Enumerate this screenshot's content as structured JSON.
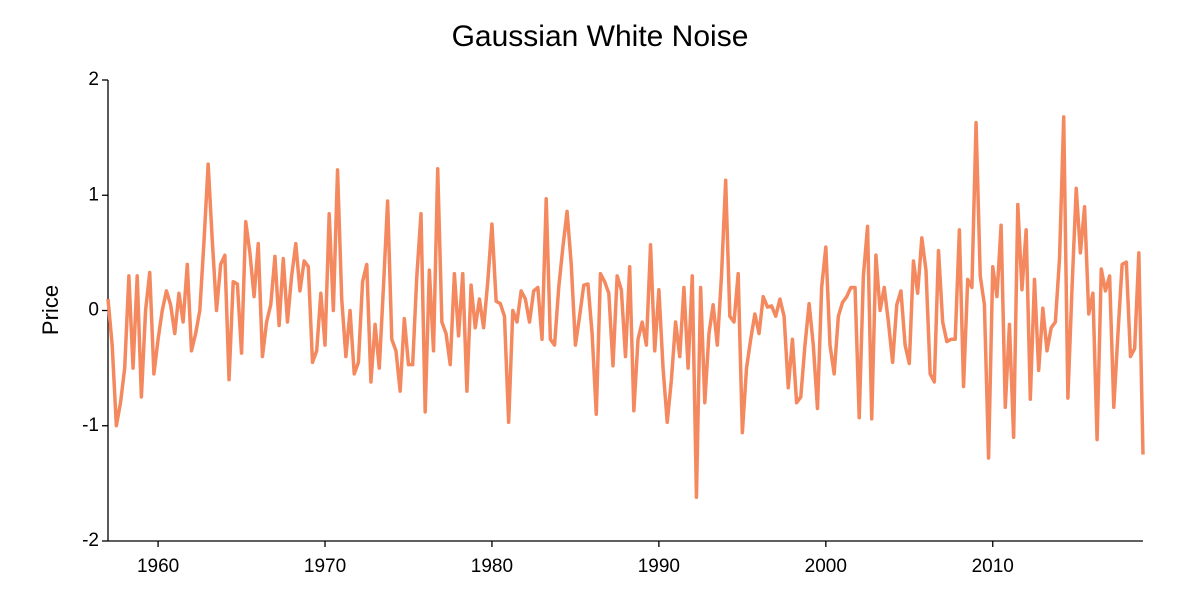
{
  "chart_data": {
    "type": "line",
    "title": "Gaussian White Noise",
    "y_label": "Price",
    "x": [
      1957,
      1957.25,
      1957.5,
      1957.75,
      1958,
      1958.25,
      1958.5,
      1958.75,
      1959,
      1959.25,
      1959.5,
      1959.75,
      1960,
      1960.25,
      1960.5,
      1960.75,
      1961,
      1961.25,
      1961.5,
      1961.75,
      1962,
      1962.25,
      1962.5,
      1962.75,
      1963,
      1963.25,
      1963.5,
      1963.75,
      1964,
      1964.25,
      1964.5,
      1964.75,
      1965,
      1965.25,
      1965.5,
      1965.75,
      1966,
      1966.25,
      1966.5,
      1966.75,
      1967,
      1967.25,
      1967.5,
      1967.75,
      1968,
      1968.25,
      1968.5,
      1968.75,
      1969,
      1969.25,
      1969.5,
      1969.75,
      1970,
      1970.25,
      1970.5,
      1970.75,
      1971,
      1971.25,
      1971.5,
      1971.75,
      1972,
      1972.25,
      1972.5,
      1972.75,
      1973,
      1973.25,
      1973.5,
      1973.75,
      1974,
      1974.25,
      1974.5,
      1974.75,
      1975,
      1975.25,
      1975.5,
      1975.75,
      1976,
      1976.25,
      1976.5,
      1976.75,
      1977,
      1977.25,
      1977.5,
      1977.75,
      1978,
      1978.25,
      1978.5,
      1978.75,
      1979,
      1979.25,
      1979.5,
      1979.75,
      1980,
      1980.25,
      1980.5,
      1980.75,
      1981,
      1981.25,
      1981.5,
      1981.75,
      1982,
      1982.25,
      1982.5,
      1982.75,
      1983,
      1983.25,
      1983.5,
      1983.75,
      1984,
      1984.25,
      1984.5,
      1984.75,
      1985,
      1985.25,
      1985.5,
      1985.75,
      1986,
      1986.25,
      1986.5,
      1986.75,
      1987,
      1987.25,
      1987.5,
      1987.75,
      1988,
      1988.25,
      1988.5,
      1988.75,
      1989,
      1989.25,
      1989.5,
      1989.75,
      1990,
      1990.25,
      1990.5,
      1990.75,
      1991,
      1991.25,
      1991.5,
      1991.75,
      1992,
      1992.25,
      1992.5,
      1992.75,
      1993,
      1993.25,
      1993.5,
      1993.75,
      1994,
      1994.25,
      1994.5,
      1994.75,
      1995,
      1995.25,
      1995.5,
      1995.75,
      1996,
      1996.25,
      1996.5,
      1996.75,
      1997,
      1997.25,
      1997.5,
      1997.75,
      1998,
      1998.25,
      1998.5,
      1998.75,
      1999,
      1999.25,
      1999.5,
      1999.75,
      2000,
      2000.25,
      2000.5,
      2000.75,
      2001,
      2001.25,
      2001.5,
      2001.75,
      2002,
      2002.25,
      2002.5,
      2002.75,
      2003,
      2003.25,
      2003.5,
      2003.75,
      2004,
      2004.25,
      2004.5,
      2004.75,
      2005,
      2005.25,
      2005.5,
      2005.75,
      2006,
      2006.25,
      2006.5,
      2006.75,
      2007,
      2007.25,
      2007.5,
      2007.75,
      2008,
      2008.25,
      2008.5,
      2008.75,
      2009,
      2009.25,
      2009.5,
      2009.75,
      2010,
      2010.25,
      2010.5,
      2010.75,
      2011,
      2011.25,
      2011.5,
      2011.75,
      2012,
      2012.25,
      2012.5,
      2012.75,
      2013,
      2013.25,
      2013.5,
      2013.75,
      2014,
      2014.25,
      2014.5,
      2014.75,
      2015,
      2015.25,
      2015.5,
      2015.75,
      2016,
      2016.25,
      2016.5,
      2016.75,
      2017,
      2017.25,
      2017.5,
      2017.75,
      2018,
      2018.25,
      2018.5,
      2018.75,
      2019
    ],
    "series": [
      {
        "name": "Price",
        "color": "#f4895f",
        "values": [
          0.1,
          -0.3,
          -1.0,
          -0.8,
          -0.5,
          0.3,
          -0.5,
          0.3,
          -0.75,
          0.0,
          0.33,
          -0.55,
          -0.25,
          0.0,
          0.17,
          0.05,
          -0.2,
          0.15,
          -0.1,
          0.4,
          -0.35,
          -0.2,
          0.0,
          0.6,
          1.27,
          0.6,
          0.0,
          0.4,
          0.48,
          -0.6,
          0.25,
          0.23,
          -0.37,
          0.77,
          0.5,
          0.12,
          0.58,
          -0.4,
          -0.1,
          0.05,
          0.47,
          -0.13,
          0.45,
          -0.1,
          0.3,
          0.58,
          0.17,
          0.43,
          0.38,
          -0.45,
          -0.35,
          0.15,
          -0.3,
          0.84,
          0.0,
          1.22,
          0.1,
          -0.4,
          0.0,
          -0.55,
          -0.45,
          0.25,
          0.4,
          -0.62,
          -0.12,
          -0.5,
          0.2,
          0.95,
          -0.25,
          -0.35,
          -0.7,
          -0.07,
          -0.47,
          -0.47,
          0.3,
          0.84,
          -0.88,
          0.35,
          -0.35,
          1.23,
          -0.1,
          -0.2,
          -0.47,
          0.32,
          -0.22,
          0.32,
          -0.7,
          0.22,
          -0.15,
          0.1,
          -0.15,
          0.25,
          0.75,
          0.08,
          0.06,
          -0.05,
          -0.97,
          0.0,
          -0.1,
          0.17,
          0.1,
          -0.1,
          0.17,
          0.2,
          -0.25,
          0.97,
          -0.25,
          -0.3,
          0.2,
          0.55,
          0.86,
          0.4,
          -0.3,
          -0.05,
          0.22,
          0.23,
          -0.2,
          -0.9,
          0.32,
          0.25,
          0.15,
          -0.48,
          0.3,
          0.18,
          -0.4,
          0.38,
          -0.87,
          -0.25,
          -0.1,
          -0.3,
          0.57,
          -0.35,
          0.18,
          -0.5,
          -0.97,
          -0.6,
          -0.1,
          -0.4,
          0.2,
          -0.5,
          0.3,
          -1.62,
          0.2,
          -0.8,
          -0.2,
          0.05,
          -0.3,
          0.3,
          1.13,
          -0.05,
          -0.1,
          0.32,
          -1.06,
          -0.5,
          -0.25,
          -0.03,
          -0.2,
          0.12,
          0.03,
          0.04,
          -0.05,
          0.1,
          -0.05,
          -0.67,
          -0.25,
          -0.8,
          -0.75,
          -0.3,
          0.06,
          -0.3,
          -0.85,
          0.2,
          0.55,
          -0.3,
          -0.55,
          -0.05,
          0.07,
          0.12,
          0.2,
          0.2,
          -0.93,
          0.3,
          0.73,
          -0.94,
          0.48,
          0.0,
          0.2,
          -0.1,
          -0.45,
          0.05,
          0.17,
          -0.3,
          -0.46,
          0.43,
          0.15,
          0.63,
          0.35,
          -0.55,
          -0.62,
          0.52,
          -0.1,
          -0.27,
          -0.25,
          -0.25,
          0.7,
          -0.66,
          0.27,
          0.2,
          1.63,
          0.3,
          0.05,
          -1.28,
          0.38,
          0.12,
          0.74,
          -0.84,
          -0.12,
          -1.1,
          0.92,
          0.18,
          0.7,
          -0.77,
          0.27,
          -0.52,
          0.02,
          -0.35,
          -0.15,
          -0.1,
          0.45,
          1.68,
          -0.76,
          0.2,
          1.06,
          0.5,
          0.9,
          -0.03,
          0.15,
          -1.12,
          0.36,
          0.17,
          0.3,
          -0.84,
          -0.2,
          0.4,
          0.42,
          -0.4,
          -0.33,
          0.5,
          -1.25
        ]
      }
    ],
    "xlim": [
      1957,
      2019
    ],
    "xticks": [
      1960,
      1970,
      1980,
      1990,
      2000,
      2010
    ],
    "ylim": [
      -2,
      2
    ],
    "yticks": [
      -2,
      -1,
      0,
      1,
      2
    ],
    "grid": false
  }
}
